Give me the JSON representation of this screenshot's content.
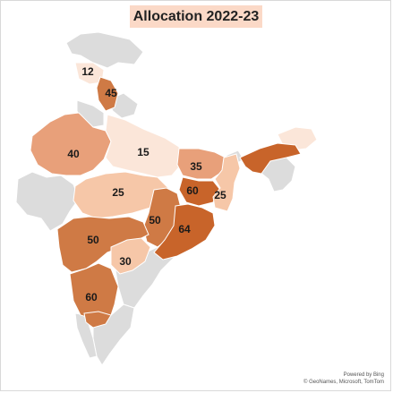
{
  "title": "Allocation 2022-23",
  "colors": {
    "unfilled": "#dcdcdc",
    "lightest": "#fbe6d9",
    "light": "#f6c7a8",
    "medium": "#e8a07a",
    "dark": "#cf7a45",
    "darkest": "#c8642a",
    "title_bg": "#fbd9c7"
  },
  "regions": [
    {
      "name": "Himachal Pradesh",
      "value": "12"
    },
    {
      "name": "Punjab",
      "value": "45"
    },
    {
      "name": "Rajasthan",
      "value": "40"
    },
    {
      "name": "Uttar Pradesh",
      "value": "15"
    },
    {
      "name": "Bihar",
      "value": "35"
    },
    {
      "name": "Jharkhand",
      "value": "60"
    },
    {
      "name": "West Bengal",
      "value": "25"
    },
    {
      "name": "Madhya Pradesh",
      "value": "25"
    },
    {
      "name": "Chhattisgarh",
      "value": "50"
    },
    {
      "name": "Odisha",
      "value": "64"
    },
    {
      "name": "Maharashtra",
      "value": "50"
    },
    {
      "name": "Telangana",
      "value": "30"
    },
    {
      "name": "Karnataka",
      "value": "60"
    },
    {
      "name": "Assam",
      "value": ""
    }
  ],
  "attribution": {
    "line1": "Powered by Bing",
    "line2": "© GeoNames, Microsoft, TomTom"
  }
}
